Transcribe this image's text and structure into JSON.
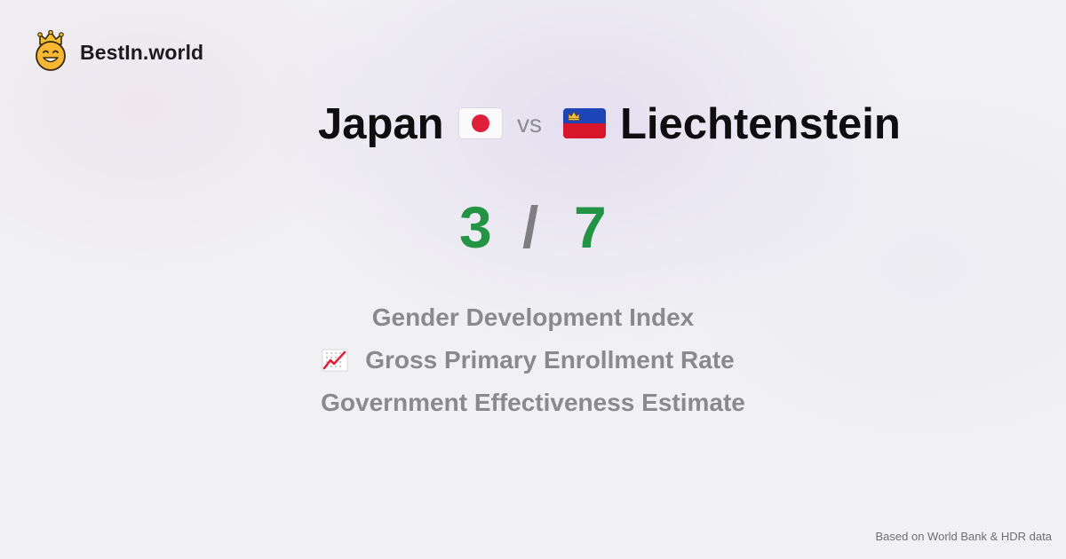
{
  "brand": {
    "name": "BestIn.world",
    "icon": "crowned-smiley-icon"
  },
  "comparison": {
    "country_left": "Japan",
    "flag_left": "japan-flag-icon",
    "vs_label": "vs",
    "country_right": "Liechtenstein",
    "flag_right": "liechtenstein-flag-icon"
  },
  "score": {
    "left": "3",
    "separator": "/",
    "right": "7"
  },
  "metrics": [
    {
      "label": "Gender Development Index"
    },
    {
      "label": "Gross Primary Enrollment Rate",
      "icon": "chart-increasing-icon"
    },
    {
      "label": "Government Effectiveness Estimate"
    }
  ],
  "footer": {
    "source_note": "Based on World Bank & HDR data"
  },
  "colors": {
    "score_green": "#229443",
    "muted_gray": "#8a8a8e",
    "japan_red": "#e0203a",
    "liechtenstein_blue": "#1d45b8",
    "liechtenstein_red": "#d7152b"
  }
}
